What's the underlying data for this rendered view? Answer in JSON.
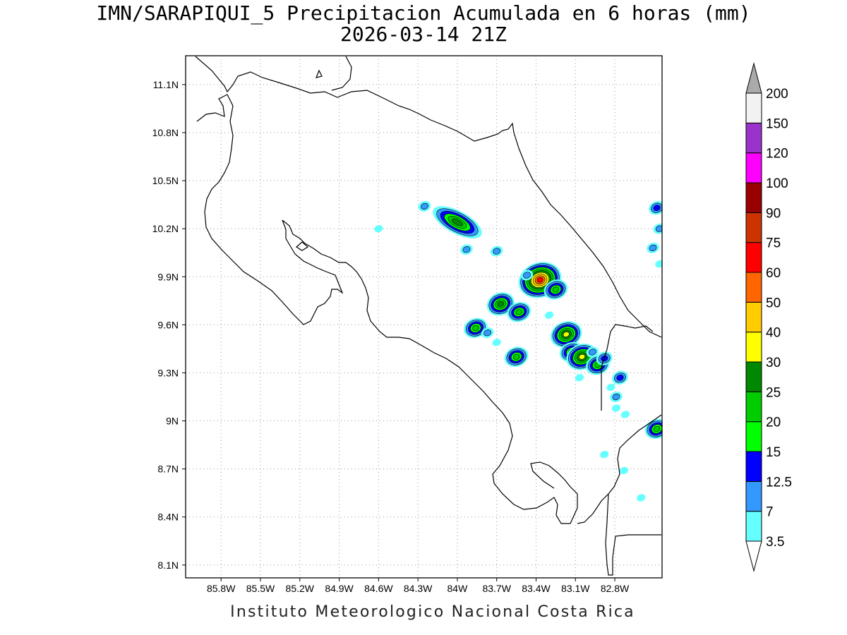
{
  "title": {
    "line1": "IMN/SARAPIQUI_5 Precipitacion Acumulada en 6 horas (mm)",
    "line2": "2026-03-14 21Z"
  },
  "credit": "Instituto Meteorologico Nacional Costa Rica",
  "map": {
    "lon_range": [
      -86.07,
      -82.44
    ],
    "lat_range": [
      8.02,
      11.28
    ],
    "lon_ticks": [
      {
        "value": -85.8,
        "label": "85.8W"
      },
      {
        "value": -85.5,
        "label": "85.5W"
      },
      {
        "value": -85.2,
        "label": "85.2W"
      },
      {
        "value": -84.9,
        "label": "84.9W"
      },
      {
        "value": -84.6,
        "label": "84.6W"
      },
      {
        "value": -84.3,
        "label": "84.3W"
      },
      {
        "value": -84.0,
        "label": "84W"
      },
      {
        "value": -83.7,
        "label": "83.7W"
      },
      {
        "value": -83.4,
        "label": "83.4W"
      },
      {
        "value": -83.1,
        "label": "83.1W"
      },
      {
        "value": -82.8,
        "label": "82.8W"
      }
    ],
    "lat_ticks": [
      {
        "value": 11.1,
        "label": "11.1N"
      },
      {
        "value": 10.8,
        "label": "10.8N"
      },
      {
        "value": 10.5,
        "label": "10.5N"
      },
      {
        "value": 10.2,
        "label": "10.2N"
      },
      {
        "value": 9.9,
        "label": "9.9N"
      },
      {
        "value": 9.6,
        "label": "9.6N"
      },
      {
        "value": 9.3,
        "label": "9.3N"
      },
      {
        "value": 9.0,
        "label": "9N"
      },
      {
        "value": 8.7,
        "label": "8.7N"
      },
      {
        "value": 8.4,
        "label": "8.4N"
      },
      {
        "value": 8.1,
        "label": "8.1N"
      }
    ],
    "grid": true
  },
  "legend": {
    "unit": "mm",
    "levels": [
      "3.5",
      "7",
      "12.5",
      "15",
      "20",
      "25",
      "30",
      "40",
      "50",
      "60",
      "75",
      "90",
      "100",
      "120",
      "150",
      "200"
    ],
    "colors": [
      "#66ffff",
      "#3399ff",
      "#0000ff",
      "#00ff00",
      "#00cc00",
      "#008800",
      "#ffff00",
      "#ffcc00",
      "#ff6600",
      "#ff0000",
      "#cc3300",
      "#990000",
      "#ff00ff",
      "#9933cc",
      "#f2f2f2",
      "#aaaaaa"
    ]
  },
  "precip_cells": [
    {
      "lon": -84.0,
      "lat": 10.24,
      "max_mm": 25
    },
    {
      "lon": -84.25,
      "lat": 10.34,
      "max_mm": 7
    },
    {
      "lon": -84.6,
      "lat": 10.2,
      "max_mm": 3.5
    },
    {
      "lon": -83.93,
      "lat": 10.07,
      "max_mm": 7
    },
    {
      "lon": -83.7,
      "lat": 10.06,
      "max_mm": 7
    },
    {
      "lon": -83.37,
      "lat": 9.88,
      "max_mm": 60
    },
    {
      "lon": -83.25,
      "lat": 9.82,
      "max_mm": 20
    },
    {
      "lon": -83.47,
      "lat": 9.91,
      "max_mm": 7
    },
    {
      "lon": -83.67,
      "lat": 9.73,
      "max_mm": 25
    },
    {
      "lon": -83.53,
      "lat": 9.68,
      "max_mm": 20
    },
    {
      "lon": -83.3,
      "lat": 9.66,
      "max_mm": 3.5
    },
    {
      "lon": -83.86,
      "lat": 9.58,
      "max_mm": 20
    },
    {
      "lon": -83.77,
      "lat": 9.55,
      "max_mm": 7
    },
    {
      "lon": -83.7,
      "lat": 9.49,
      "max_mm": 3.5
    },
    {
      "lon": -83.55,
      "lat": 9.4,
      "max_mm": 20
    },
    {
      "lon": -83.17,
      "lat": 9.54,
      "max_mm": 30
    },
    {
      "lon": -83.13,
      "lat": 9.43,
      "max_mm": 20
    },
    {
      "lon": -83.05,
      "lat": 9.4,
      "max_mm": 30
    },
    {
      "lon": -82.97,
      "lat": 9.43,
      "max_mm": 7
    },
    {
      "lon": -82.93,
      "lat": 9.35,
      "max_mm": 20
    },
    {
      "lon": -82.88,
      "lat": 9.39,
      "max_mm": 12.5
    },
    {
      "lon": -83.07,
      "lat": 9.27,
      "max_mm": 3.5
    },
    {
      "lon": -82.76,
      "lat": 9.27,
      "max_mm": 12.5
    },
    {
      "lon": -82.79,
      "lat": 9.15,
      "max_mm": 7
    },
    {
      "lon": -82.83,
      "lat": 9.21,
      "max_mm": 3.5
    },
    {
      "lon": -82.72,
      "lat": 9.04,
      "max_mm": 3.5
    },
    {
      "lon": -82.79,
      "lat": 9.08,
      "max_mm": 3.5
    },
    {
      "lon": -82.48,
      "lat": 8.95,
      "max_mm": 20
    },
    {
      "lon": -82.48,
      "lat": 10.33,
      "max_mm": 12.5
    },
    {
      "lon": -82.46,
      "lat": 10.2,
      "max_mm": 7
    },
    {
      "lon": -82.51,
      "lat": 10.08,
      "max_mm": 7
    },
    {
      "lon": -82.46,
      "lat": 9.98,
      "max_mm": 3.5
    },
    {
      "lon": -82.73,
      "lat": 8.69,
      "max_mm": 3.5
    },
    {
      "lon": -82.6,
      "lat": 8.52,
      "max_mm": 3.5
    },
    {
      "lon": -82.88,
      "lat": 8.79,
      "max_mm": 3.5
    }
  ]
}
